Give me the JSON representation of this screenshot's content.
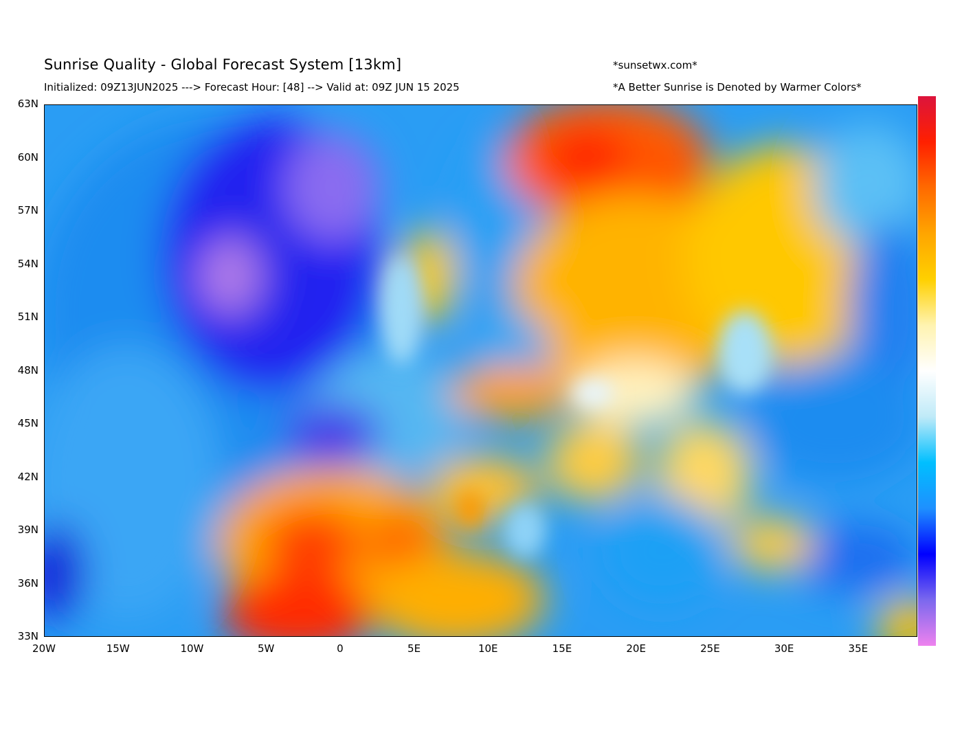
{
  "header": {
    "title": "Sunrise Quality - Global Forecast System [13km]",
    "subtitle": "Initialized: 09Z13JUN2025 ---> Forecast Hour: [48] --> Valid at: 09Z JUN 15 2025",
    "credit": "*sunsetwx.com*",
    "note": "*A Better Sunrise is Denoted by Warmer Colors*"
  },
  "map": {
    "lon_range": [
      -20,
      39
    ],
    "lat_range": [
      33,
      63
    ],
    "lat_ticks": [
      "63N",
      "60N",
      "57N",
      "54N",
      "51N",
      "48N",
      "45N",
      "42N",
      "39N",
      "36N",
      "33N"
    ],
    "lon_ticks": [
      "20W",
      "15W",
      "10W",
      "5W",
      "0",
      "5E",
      "10E",
      "15E",
      "20E",
      "25E",
      "30E",
      "35E"
    ]
  },
  "colorbar": {
    "colors": [
      "#dc143c",
      "#ff2000",
      "#ff6a00",
      "#ffa500",
      "#ffd000",
      "#fff3b0",
      "#ffffff",
      "#bfeaf8",
      "#00bfff",
      "#1e90ff",
      "#0000ff",
      "#7b68ee",
      "#ee82ee"
    ]
  }
}
